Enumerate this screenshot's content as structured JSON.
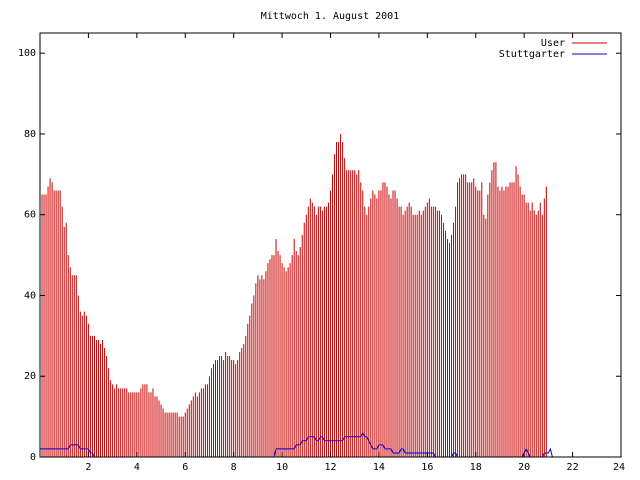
{
  "chart_data": {
    "type": "bar",
    "title": "Mittwoch 1. August 2001",
    "xlabel": "",
    "ylabel": "",
    "xlim": [
      0,
      24
    ],
    "ylim": [
      0,
      105
    ],
    "x_ticks": [
      2,
      4,
      6,
      8,
      10,
      12,
      14,
      16,
      18,
      20,
      22,
      24
    ],
    "y_ticks": [
      0,
      20,
      40,
      60,
      80,
      100
    ],
    "grid": false,
    "legend_position": "top-right",
    "x_step_hours": 0.08333,
    "series": [
      {
        "name": "User",
        "style": "impulses",
        "color": "#cc0000",
        "values": [
          69,
          65,
          65,
          65,
          67,
          69,
          68,
          66,
          66,
          66,
          66,
          62,
          57,
          58,
          50,
          47,
          45,
          45,
          45,
          40,
          36,
          35,
          36,
          35,
          33,
          30,
          30,
          30,
          29,
          29,
          28,
          29,
          27,
          25,
          22,
          19,
          18,
          17,
          18,
          17,
          17,
          17,
          17,
          17,
          16,
          16,
          16,
          16,
          16,
          16,
          17,
          18,
          18,
          18,
          16,
          16,
          17,
          15,
          15,
          14,
          13,
          12,
          11,
          11,
          11,
          11,
          11,
          11,
          11,
          10,
          10,
          10,
          11,
          12,
          13,
          14,
          15,
          16,
          15,
          16,
          17,
          17,
          18,
          18,
          20,
          22,
          23,
          24,
          24,
          25,
          25,
          24,
          26,
          25,
          25,
          24,
          24,
          23,
          24,
          26,
          27,
          28,
          30,
          33,
          35,
          38,
          40,
          43,
          45,
          44,
          45,
          44,
          46,
          48,
          49,
          50,
          50,
          54,
          51,
          50,
          48,
          47,
          46,
          47,
          48,
          50,
          54,
          51,
          50,
          52,
          55,
          58,
          60,
          62,
          64,
          63,
          62,
          60,
          62,
          62,
          61,
          62,
          62,
          63,
          66,
          70,
          75,
          78,
          78,
          80,
          78,
          74,
          71,
          71,
          71,
          71,
          71,
          70,
          71,
          68,
          66,
          62,
          60,
          62,
          64,
          66,
          65,
          64,
          66,
          66,
          68,
          68,
          67,
          65,
          64,
          66,
          66,
          64,
          62,
          62,
          60,
          61,
          62,
          63,
          62,
          60,
          60,
          60,
          61,
          60,
          61,
          62,
          63,
          64,
          62,
          62,
          62,
          61,
          61,
          60,
          58,
          56,
          54,
          53,
          55,
          58,
          62,
          68,
          69,
          70,
          70,
          70,
          68,
          68,
          68,
          69,
          67,
          66,
          66,
          68,
          60,
          59,
          65,
          68,
          71,
          73,
          73,
          67,
          66,
          67,
          66,
          67,
          67,
          68,
          68,
          68,
          72,
          70,
          67,
          65,
          65,
          63,
          63,
          61,
          63,
          61,
          60,
          61,
          63,
          60,
          64,
          67
        ]
      },
      {
        "name": "Stuttgarter",
        "style": "line",
        "color": "#0000cc",
        "values": [
          2,
          2,
          2,
          2,
          2,
          2,
          2,
          2,
          2,
          2,
          2,
          2,
          2,
          2,
          2,
          3,
          3,
          3,
          3,
          3,
          2,
          2,
          2,
          2,
          2,
          1,
          1,
          0,
          0,
          0,
          0,
          0,
          0,
          0,
          0,
          0,
          0,
          0,
          0,
          0,
          0,
          0,
          0,
          0,
          0,
          0,
          0,
          0,
          0,
          0,
          0,
          0,
          0,
          0,
          0,
          0,
          0,
          0,
          0,
          0,
          0,
          0,
          0,
          0,
          0,
          0,
          0,
          0,
          0,
          0,
          0,
          0,
          0,
          0,
          0,
          0,
          0,
          0,
          0,
          0,
          0,
          0,
          0,
          0,
          0,
          0,
          0,
          0,
          0,
          0,
          0,
          0,
          0,
          0,
          0,
          0,
          0,
          0,
          0,
          0,
          0,
          0,
          0,
          0,
          0,
          0,
          0,
          0,
          0,
          0,
          0,
          0,
          0,
          0,
          0,
          0,
          0,
          0,
          0,
          0,
          0,
          0,
          0,
          0,
          0,
          0,
          0,
          0,
          0,
          0,
          0,
          0,
          0,
          0,
          0,
          0,
          0,
          0,
          0,
          0,
          0,
          0,
          0,
          0,
          0,
          0,
          0,
          0,
          0,
          0,
          0,
          0,
          0,
          0,
          0,
          0,
          0,
          0,
          0,
          0,
          0,
          0,
          0,
          0,
          0,
          0,
          0,
          0,
          0,
          0,
          0,
          0,
          0,
          0,
          0,
          0,
          0,
          0,
          0,
          0,
          0,
          0,
          0,
          0,
          0,
          0,
          0,
          0,
          0,
          0,
          0,
          0,
          0,
          0,
          0,
          0,
          0,
          0,
          0,
          0,
          0,
          0,
          0,
          0,
          0,
          0,
          0,
          0,
          0,
          0,
          0,
          0,
          0,
          0,
          0,
          0,
          0,
          0,
          0,
          0,
          0,
          0,
          0,
          0,
          0,
          0,
          0,
          0,
          0,
          0,
          0,
          0,
          0,
          0,
          0,
          0,
          0,
          0,
          0,
          0,
          0,
          0,
          0,
          0,
          0,
          0,
          0,
          0,
          0,
          0,
          0,
          0,
          0,
          0,
          0,
          0,
          0,
          0,
          0,
          0,
          0,
          0,
          0,
          0,
          0,
          0,
          0,
          0,
          0,
          0,
          0,
          0,
          0
        ]
      }
    ],
    "stuttgarter_overrides": [
      [
        94,
        0
      ],
      [
        95,
        0
      ],
      [
        96,
        0
      ],
      [
        117,
        2
      ],
      [
        118,
        2
      ],
      [
        119,
        2
      ],
      [
        120,
        2
      ],
      [
        121,
        2
      ],
      [
        122,
        2
      ],
      [
        123,
        2
      ],
      [
        124,
        2
      ],
      [
        125,
        2
      ],
      [
        126,
        2
      ],
      [
        127,
        3
      ],
      [
        128,
        3
      ],
      [
        129,
        3
      ],
      [
        130,
        4
      ],
      [
        131,
        4
      ],
      [
        132,
        4
      ],
      [
        133,
        5
      ],
      [
        134,
        5
      ],
      [
        135,
        5
      ],
      [
        136,
        5
      ],
      [
        137,
        4
      ],
      [
        138,
        4
      ],
      [
        139,
        5
      ],
      [
        140,
        5
      ],
      [
        141,
        4
      ],
      [
        142,
        4
      ],
      [
        143,
        4
      ],
      [
        144,
        4
      ],
      [
        145,
        4
      ],
      [
        146,
        4
      ],
      [
        147,
        4
      ],
      [
        148,
        4
      ],
      [
        149,
        4
      ],
      [
        150,
        4
      ],
      [
        151,
        5
      ],
      [
        152,
        5
      ],
      [
        153,
        5
      ],
      [
        154,
        5
      ],
      [
        155,
        5
      ],
      [
        156,
        5
      ],
      [
        157,
        5
      ],
      [
        158,
        5
      ],
      [
        159,
        5
      ],
      [
        160,
        6
      ],
      [
        161,
        5
      ],
      [
        162,
        5
      ],
      [
        163,
        4
      ],
      [
        164,
        3
      ],
      [
        165,
        2
      ],
      [
        166,
        2
      ],
      [
        167,
        2
      ],
      [
        168,
        3
      ],
      [
        169,
        3
      ],
      [
        170,
        3
      ],
      [
        171,
        2
      ],
      [
        172,
        2
      ],
      [
        173,
        2
      ],
      [
        174,
        2
      ],
      [
        175,
        1
      ],
      [
        176,
        1
      ],
      [
        177,
        1
      ],
      [
        178,
        1
      ],
      [
        179,
        2
      ],
      [
        180,
        2
      ],
      [
        181,
        1
      ],
      [
        182,
        1
      ],
      [
        183,
        1
      ],
      [
        184,
        1
      ],
      [
        185,
        1
      ],
      [
        186,
        1
      ],
      [
        187,
        1
      ],
      [
        188,
        1
      ],
      [
        189,
        1
      ],
      [
        190,
        1
      ],
      [
        191,
        1
      ],
      [
        192,
        1
      ],
      [
        193,
        1
      ],
      [
        194,
        1
      ],
      [
        195,
        1
      ],
      [
        196,
        0
      ],
      [
        205,
        1
      ],
      [
        206,
        1
      ],
      [
        240,
        1
      ],
      [
        241,
        2
      ],
      [
        242,
        1
      ],
      [
        243,
        0
      ],
      [
        250,
        1
      ],
      [
        251,
        1
      ],
      [
        252,
        1
      ],
      [
        253,
        2
      ]
    ],
    "colors": {
      "user": "#cc0000",
      "stuttgarter": "#0000cc",
      "axis": "#000000"
    }
  }
}
